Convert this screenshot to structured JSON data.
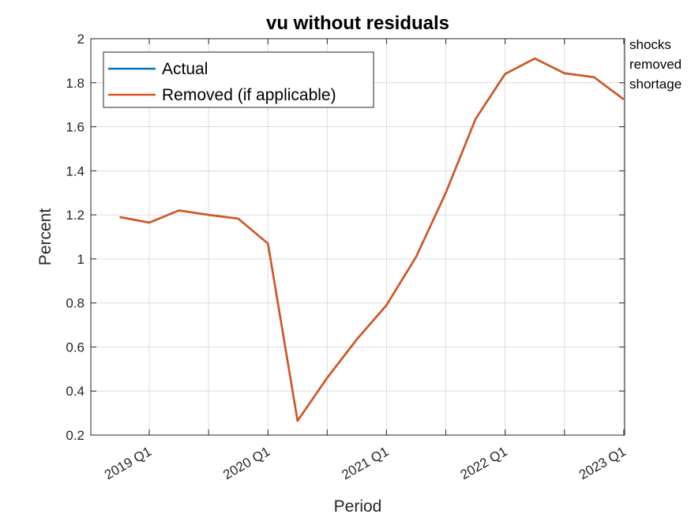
{
  "chart_data": {
    "type": "line",
    "title": "vu without residuals",
    "xlabel": "Period",
    "ylabel": "Percent",
    "ylim": [
      0.2,
      2
    ],
    "yticks": [
      "0.2",
      "0.4",
      "0.6",
      "0.8",
      "1",
      "1.2",
      "1.4",
      "1.6",
      "1.8",
      "2"
    ],
    "xtick_labels": [
      "2019 Q1",
      "2020 Q1",
      "2021 Q1",
      "2022 Q1",
      "2023 Q1"
    ],
    "x": [
      "2018 Q4",
      "2019 Q1",
      "2019 Q2",
      "2019 Q3",
      "2019 Q4",
      "2020 Q1",
      "2020 Q2",
      "2020 Q3",
      "2020 Q4",
      "2021 Q1",
      "2021 Q2",
      "2021 Q3",
      "2021 Q4",
      "2022 Q1",
      "2022 Q2",
      "2022 Q3",
      "2022 Q4",
      "2023 Q1"
    ],
    "series": [
      {
        "name": "Actual",
        "color": "#0072BD",
        "values": [
          1.19,
          1.165,
          1.22,
          1.2,
          1.183,
          1.07,
          0.265,
          0.46,
          0.635,
          0.79,
          1.01,
          1.3,
          1.635,
          1.84,
          1.91,
          1.843,
          1.825,
          1.725
        ]
      },
      {
        "name": "Removed (if applicable)",
        "color": "#D95319",
        "values": [
          1.19,
          1.165,
          1.22,
          1.2,
          1.183,
          1.07,
          0.265,
          0.46,
          0.635,
          0.79,
          1.01,
          1.3,
          1.635,
          1.84,
          1.91,
          1.843,
          1.825,
          1.725
        ]
      }
    ],
    "grid": true,
    "legend": "top-left",
    "annotation": [
      "shocks",
      "removed",
      "shortage"
    ]
  }
}
